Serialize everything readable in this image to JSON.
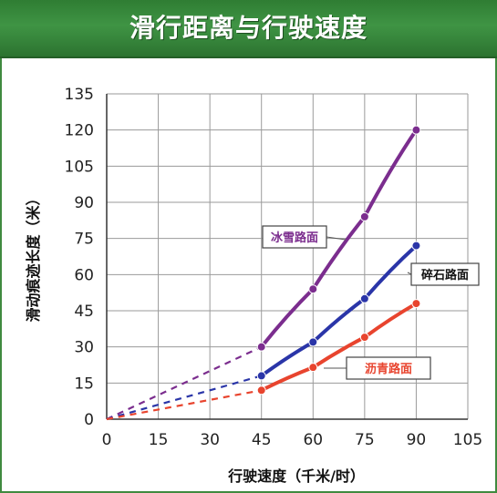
{
  "header": {
    "title": "滑行距离与行驶速度"
  },
  "chart_data": {
    "type": "line",
    "title": "滑行距离与行驶速度",
    "xlabel": "行驶速度（千米/时）",
    "ylabel": "滑动痕迹长度（米）",
    "xlim": [
      0,
      105
    ],
    "ylim": [
      0,
      135
    ],
    "x_ticks": [
      "0",
      "15",
      "30",
      "45",
      "60",
      "75",
      "90",
      "105"
    ],
    "y_ticks": [
      "0",
      "15",
      "30",
      "45",
      "60",
      "75",
      "90",
      "105",
      "120",
      "135"
    ],
    "grid": true,
    "series": [
      {
        "name": "冰雪路面",
        "color": "#7b2d8e",
        "label_color": "#7b2d8e",
        "estimated": [
          [
            0,
            0
          ],
          [
            45,
            30
          ]
        ],
        "x": [
          45,
          60,
          75,
          90
        ],
        "y": [
          30,
          54,
          84,
          120
        ]
      },
      {
        "name": "碎石路面",
        "color": "#2a35a8",
        "label_color": "#111111",
        "estimated": [
          [
            0,
            0
          ],
          [
            45,
            18
          ]
        ],
        "x": [
          45,
          60,
          75,
          90
        ],
        "y": [
          18,
          32,
          50,
          72
        ]
      },
      {
        "name": "沥青路面",
        "color": "#e8442e",
        "label_color": "#e8442e",
        "estimated": [
          [
            0,
            0
          ],
          [
            45,
            12
          ]
        ],
        "x": [
          45,
          60,
          75,
          90
        ],
        "y": [
          12,
          21.5,
          34,
          48
        ]
      }
    ]
  }
}
